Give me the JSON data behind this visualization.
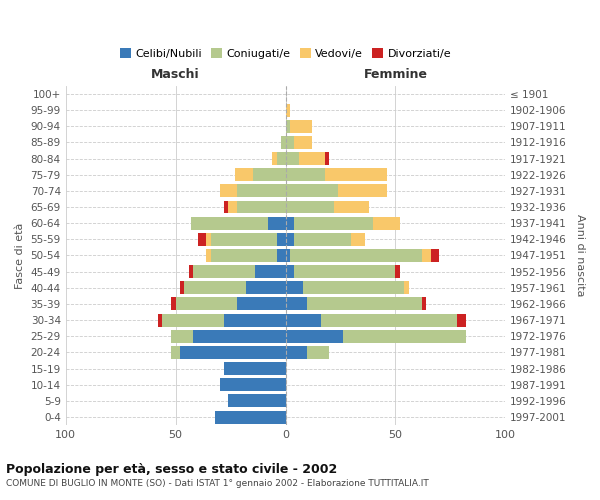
{
  "age_groups": [
    "0-4",
    "5-9",
    "10-14",
    "15-19",
    "20-24",
    "25-29",
    "30-34",
    "35-39",
    "40-44",
    "45-49",
    "50-54",
    "55-59",
    "60-64",
    "65-69",
    "70-74",
    "75-79",
    "80-84",
    "85-89",
    "90-94",
    "95-99",
    "100+"
  ],
  "birth_years": [
    "1997-2001",
    "1992-1996",
    "1987-1991",
    "1982-1986",
    "1977-1981",
    "1972-1976",
    "1967-1971",
    "1962-1966",
    "1957-1961",
    "1952-1956",
    "1947-1951",
    "1942-1946",
    "1937-1941",
    "1932-1936",
    "1927-1931",
    "1922-1926",
    "1917-1921",
    "1912-1916",
    "1907-1911",
    "1902-1906",
    "≤ 1901"
  ],
  "maschi_celibi": [
    32,
    26,
    30,
    28,
    48,
    42,
    28,
    22,
    18,
    14,
    4,
    4,
    8,
    0,
    0,
    0,
    0,
    0,
    0,
    0,
    0
  ],
  "maschi_coniugati": [
    0,
    0,
    0,
    0,
    4,
    10,
    28,
    28,
    28,
    28,
    30,
    30,
    35,
    22,
    22,
    15,
    4,
    2,
    0,
    0,
    0
  ],
  "maschi_vedovi": [
    0,
    0,
    0,
    0,
    0,
    0,
    0,
    0,
    0,
    0,
    2,
    2,
    0,
    4,
    8,
    8,
    2,
    0,
    0,
    0,
    0
  ],
  "maschi_divorziati": [
    0,
    0,
    0,
    0,
    0,
    0,
    2,
    2,
    2,
    2,
    0,
    4,
    0,
    2,
    0,
    0,
    0,
    0,
    0,
    0,
    0
  ],
  "femmine_celibi": [
    0,
    0,
    0,
    0,
    10,
    26,
    16,
    10,
    8,
    4,
    2,
    4,
    4,
    0,
    0,
    0,
    0,
    0,
    0,
    0,
    0
  ],
  "femmine_coniugati": [
    0,
    0,
    0,
    0,
    10,
    56,
    62,
    52,
    46,
    46,
    60,
    26,
    36,
    22,
    24,
    18,
    6,
    4,
    2,
    0,
    0
  ],
  "femmine_vedovi": [
    0,
    0,
    0,
    0,
    0,
    0,
    0,
    0,
    2,
    0,
    4,
    6,
    12,
    16,
    22,
    28,
    12,
    8,
    10,
    2,
    0
  ],
  "femmine_divorziati": [
    0,
    0,
    0,
    0,
    0,
    0,
    4,
    2,
    0,
    2,
    4,
    0,
    0,
    0,
    0,
    0,
    2,
    0,
    0,
    0,
    0
  ],
  "color_celibi": "#3a7ab8",
  "color_coniugati": "#b5c98e",
  "color_vedovi": "#f9c86a",
  "color_divorziati": "#cc2222",
  "title_main": "Popolazione per età, sesso e stato civile - 2002",
  "title_sub": "COMUNE DI BUGLIO IN MONTE (SO) - Dati ISTAT 1° gennaio 2002 - Elaborazione TUTTITALIA.IT",
  "ylabel_left": "Fasce di età",
  "ylabel_right": "Anni di nascita",
  "xlabel_maschi": "Maschi",
  "xlabel_femmine": "Femmine",
  "xlim": 100,
  "bg_color": "#ffffff",
  "grid_color": "#cccccc"
}
